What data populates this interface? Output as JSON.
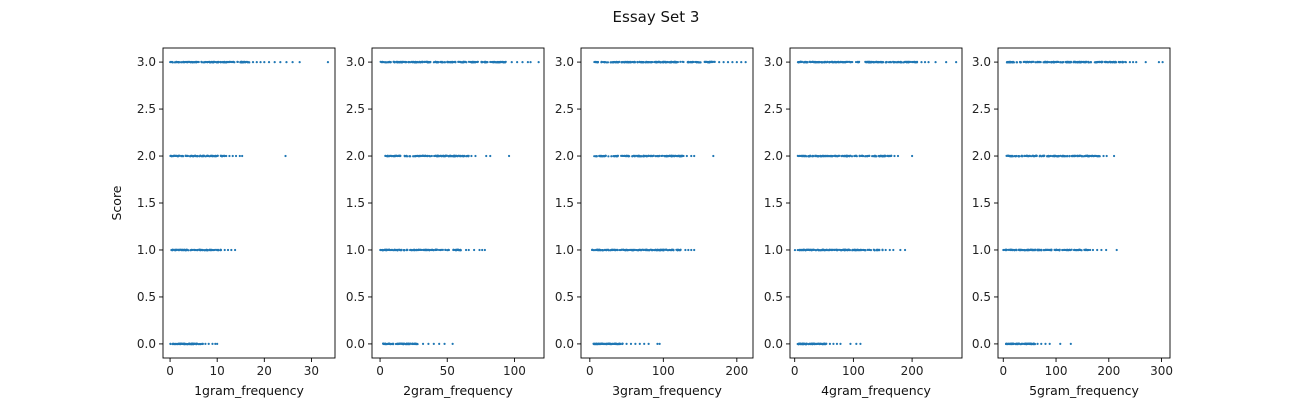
{
  "figure": {
    "title": "Essay Set 3",
    "marker_color": "#1f77b4"
  },
  "chart_data": [
    {
      "type": "scatter",
      "xlabel": "1gram_frequency",
      "ylabel": "Score",
      "xlim": [
        -1.5,
        35
      ],
      "ylim": [
        -0.15,
        3.15
      ],
      "xticks": [
        0,
        10,
        20,
        30
      ],
      "yticks": [
        0.0,
        0.5,
        1.0,
        1.5,
        2.0,
        2.5,
        3.0
      ],
      "ytick_labels": [
        "0.0",
        "0.5",
        "1.0",
        "1.5",
        "2.0",
        "2.5",
        "3.0"
      ],
      "rows": [
        {
          "y": 0,
          "dense": [
            0,
            7
          ],
          "sparse": [
            7.5,
            8.2,
            9,
            9.6,
            10
          ]
        },
        {
          "y": 1,
          "dense": [
            0,
            11
          ],
          "sparse": [
            11.6,
            12.3,
            13,
            13.8
          ]
        },
        {
          "y": 2,
          "dense": [
            0,
            12
          ],
          "sparse": [
            12.6,
            13.3,
            14,
            14.8,
            15.3,
            24.5
          ]
        },
        {
          "y": 3,
          "dense": [
            0,
            17
          ],
          "sparse": [
            17.6,
            18.4,
            19.2,
            20,
            21,
            22.2,
            23.4,
            24.7,
            26,
            27.5,
            33.5
          ]
        }
      ]
    },
    {
      "type": "scatter",
      "xlabel": "2gram_frequency",
      "ylabel": "",
      "xlim": [
        -6,
        122
      ],
      "ylim": [
        -0.15,
        3.15
      ],
      "xticks": [
        0,
        50,
        100
      ],
      "yticks": [
        0.0,
        0.5,
        1.0,
        1.5,
        2.0,
        2.5,
        3.0
      ],
      "ytick_labels": [
        "0.0",
        "0.5",
        "1.0",
        "1.5",
        "2.0",
        "2.5",
        "3.0"
      ],
      "rows": [
        {
          "y": 0,
          "dense": [
            2,
            28
          ],
          "sparse": [
            32,
            36,
            40,
            44,
            48,
            54
          ]
        },
        {
          "y": 1,
          "dense": [
            0,
            62
          ],
          "sparse": [
            64,
            66,
            70,
            74,
            76,
            78
          ]
        },
        {
          "y": 2,
          "dense": [
            3,
            66
          ],
          "sparse": [
            68,
            71,
            79,
            82,
            96
          ]
        },
        {
          "y": 3,
          "dense": [
            0,
            95
          ],
          "sparse": [
            98,
            102,
            106,
            110,
            112,
            118
          ]
        }
      ]
    },
    {
      "type": "scatter",
      "xlabel": "3gram_frequency",
      "ylabel": "",
      "xlim": [
        -12,
        222
      ],
      "ylim": [
        -0.15,
        3.15
      ],
      "xticks": [
        0,
        100,
        200
      ],
      "yticks": [
        0.0,
        0.5,
        1.0,
        1.5,
        2.0,
        2.5,
        3.0
      ],
      "ytick_labels": [
        "0.0",
        "0.5",
        "1.0",
        "1.5",
        "2.0",
        "2.5",
        "3.0"
      ],
      "rows": [
        {
          "y": 0,
          "dense": [
            5,
            45
          ],
          "sparse": [
            50,
            56,
            62,
            68,
            74,
            80,
            92,
            95
          ]
        },
        {
          "y": 1,
          "dense": [
            3,
            125
          ],
          "sparse": [
            130,
            134,
            138,
            142
          ]
        },
        {
          "y": 2,
          "dense": [
            5,
            128
          ],
          "sparse": [
            132,
            138,
            142,
            168
          ]
        },
        {
          "y": 3,
          "dense": [
            5,
            170
          ],
          "sparse": [
            176,
            182,
            188,
            194,
            200,
            206,
            212
          ]
        }
      ]
    },
    {
      "type": "scatter",
      "xlabel": "4gram_frequency",
      "ylabel": "",
      "xlim": [
        -8,
        285
      ],
      "ylim": [
        -0.15,
        3.15
      ],
      "xticks": [
        0,
        100,
        200
      ],
      "yticks": [
        0.0,
        0.5,
        1.0,
        1.5,
        2.0,
        2.5,
        3.0
      ],
      "ytick_labels": [
        "0.0",
        "0.5",
        "1.0",
        "1.5",
        "2.0",
        "2.5",
        "3.0"
      ],
      "rows": [
        {
          "y": 0,
          "dense": [
            5,
            55
          ],
          "sparse": [
            60,
            66,
            72,
            78,
            95,
            105,
            112
          ]
        },
        {
          "y": 1,
          "dense": [
            0,
            150
          ],
          "sparse": [
            155,
            162,
            168,
            180,
            188
          ]
        },
        {
          "y": 2,
          "dense": [
            5,
            165
          ],
          "sparse": [
            170,
            176,
            200
          ]
        },
        {
          "y": 3,
          "dense": [
            5,
            210
          ],
          "sparse": [
            216,
            222,
            228,
            240,
            258,
            275
          ]
        }
      ]
    },
    {
      "type": "scatter",
      "xlabel": "5gram_frequency",
      "ylabel": "",
      "xlim": [
        -10,
        316
      ],
      "ylim": [
        -0.15,
        3.15
      ],
      "xticks": [
        0,
        100,
        200,
        300
      ],
      "yticks": [
        0.0,
        0.5,
        1.0,
        1.5,
        2.0,
        2.5,
        3.0
      ],
      "ytick_labels": [
        "0.0",
        "0.5",
        "1.0",
        "1.5",
        "2.0",
        "2.5",
        "3.0"
      ],
      "rows": [
        {
          "y": 0,
          "dense": [
            5,
            60
          ],
          "sparse": [
            65,
            72,
            80,
            88,
            108,
            128
          ]
        },
        {
          "y": 1,
          "dense": [
            0,
            165
          ],
          "sparse": [
            170,
            178,
            186,
            195,
            215
          ]
        },
        {
          "y": 2,
          "dense": [
            5,
            185
          ],
          "sparse": [
            190,
            196,
            210
          ]
        },
        {
          "y": 3,
          "dense": [
            5,
            235
          ],
          "sparse": [
            240,
            246,
            252,
            270,
            295,
            302
          ]
        }
      ]
    }
  ]
}
